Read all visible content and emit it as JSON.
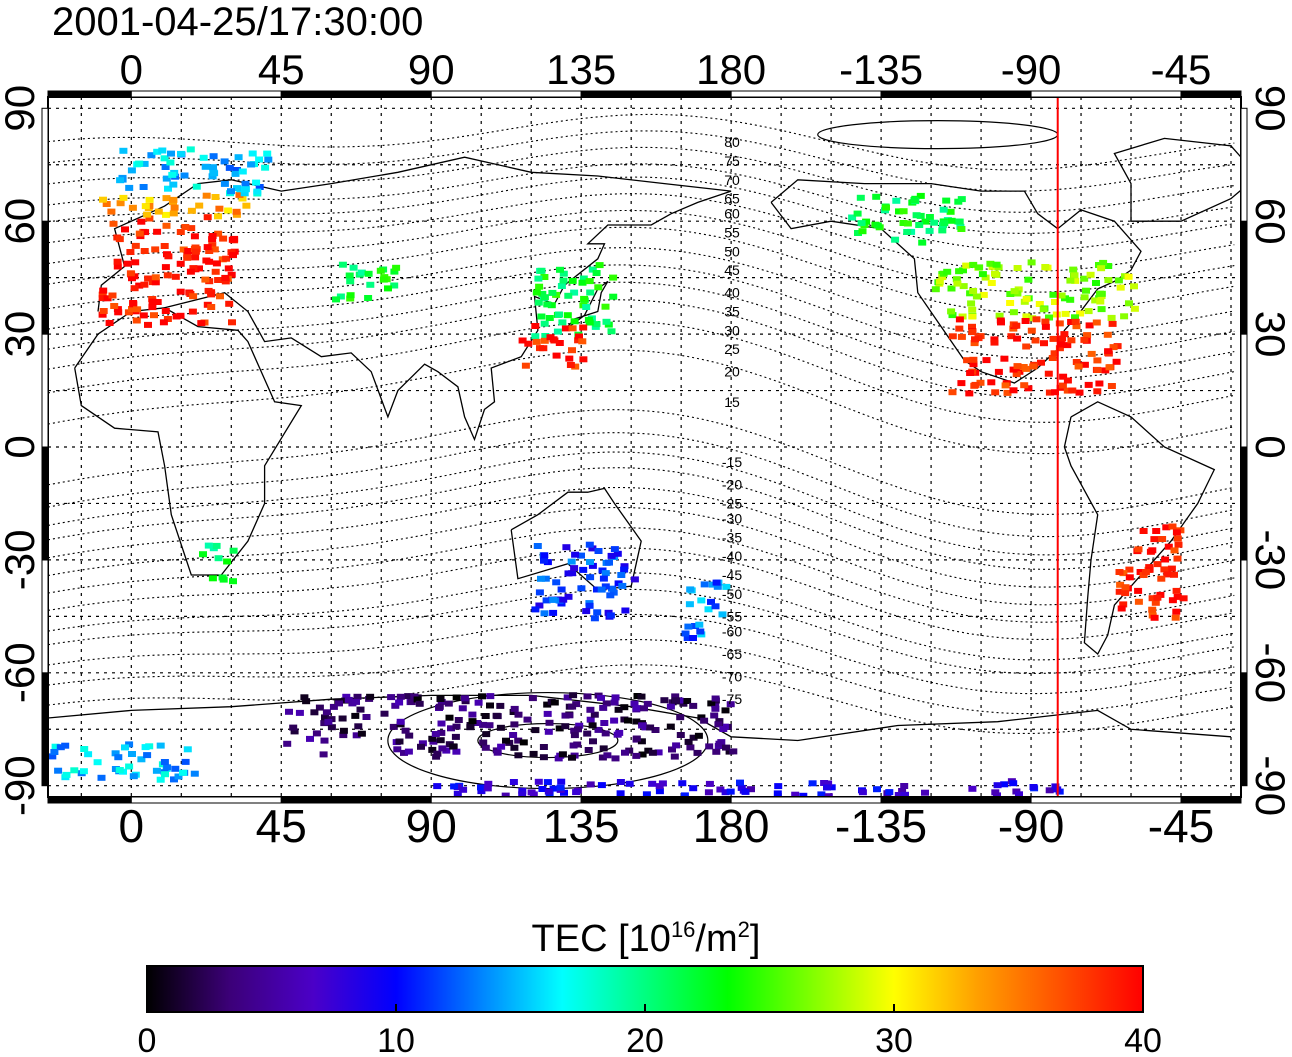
{
  "title": "2001-04-25/17:30:00",
  "map": {
    "lon_ticks": [
      "0",
      "45",
      "90",
      "135",
      "180",
      "-135",
      "-90",
      "-45"
    ],
    "lon_tick_values": [
      0,
      45,
      90,
      135,
      180,
      225,
      270,
      315
    ],
    "lat_ticks": [
      "90",
      "60",
      "30",
      "0",
      "-30",
      "-60",
      "-90"
    ],
    "lat_tick_values": [
      90,
      60,
      30,
      0,
      -30,
      -60,
      -90
    ],
    "lon_range": [
      -25,
      333
    ],
    "lat_range": [
      -93,
      93
    ],
    "marker_longitude": -82,
    "marker_color": "#ff0000",
    "dip_labels": [
      "80",
      "75",
      "70",
      "65",
      "60",
      "55",
      "50",
      "45",
      "40",
      "35",
      "30",
      "25",
      "20",
      "15",
      "-15",
      "-20",
      "-25",
      "-30",
      "-35",
      "-40",
      "-45",
      "-50",
      "-55",
      "-60",
      "-65",
      "-70",
      "-75"
    ],
    "dip_label_lats": [
      81,
      76,
      71,
      66,
      62,
      57,
      52,
      47,
      41,
      36,
      31,
      26,
      20,
      12,
      -4,
      -10,
      -15,
      -19,
      -24,
      -29,
      -34,
      -39,
      -45,
      -49,
      -55,
      -61,
      -67
    ]
  },
  "colorbar": {
    "label_main": "TEC  [10",
    "label_exp1": "16",
    "label_mid": "/m",
    "label_exp2": "2",
    "label_end": "]",
    "ticks": [
      "0",
      "10",
      "20",
      "30",
      "40"
    ],
    "range": [
      0,
      40
    ],
    "stops": [
      "#000000",
      "#3c0078",
      "#4b00c8",
      "#0000ff",
      "#0080ff",
      "#00ffff",
      "#00ff80",
      "#00ff00",
      "#80ff00",
      "#ffff00",
      "#ffa000",
      "#ff5000",
      "#ff0000"
    ]
  },
  "chart_data": {
    "type": "heatmap",
    "title": "2001-04-25/17:30:00",
    "colorbar_label": "TEC [10^16/m^2]",
    "regions": [
      {
        "lon": [
          -10,
          30
        ],
        "lat": [
          33,
          62
        ],
        "tec": 39
      },
      {
        "lon": [
          -10,
          35
        ],
        "lat": [
          62,
          68
        ],
        "tec": 33
      },
      {
        "lon": [
          -5,
          40
        ],
        "lat": [
          68,
          80
        ],
        "tec": 15
      },
      {
        "lon": [
          60,
          80
        ],
        "lat": [
          40,
          50
        ],
        "tec": 22
      },
      {
        "lon": [
          120,
          145
        ],
        "lat": [
          30,
          50
        ],
        "tec": 22
      },
      {
        "lon": [
          115,
          135
        ],
        "lat": [
          22,
          33
        ],
        "tec": 39
      },
      {
        "lon": [
          215,
          250
        ],
        "lat": [
          55,
          68
        ],
        "tec": 22
      },
      {
        "lon": [
          240,
          300
        ],
        "lat": [
          35,
          50
        ],
        "tec": 27
      },
      {
        "lon": [
          245,
          295
        ],
        "lat": [
          15,
          35
        ],
        "tec": 39
      },
      {
        "lon": [
          295,
          315
        ],
        "lat": [
          -45,
          -20
        ],
        "tec": 39
      },
      {
        "lon": [
          120,
          150
        ],
        "lat": [
          -45,
          -25
        ],
        "tec": 11
      },
      {
        "lon": [
          165,
          178
        ],
        "lat": [
          -50,
          -35
        ],
        "tec": 13
      },
      {
        "lon": [
          20,
          30
        ],
        "lat": [
          -35,
          -25
        ],
        "tec": 21
      },
      {
        "lon": [
          45,
          180
        ],
        "lat": [
          -82,
          -65
        ],
        "tec": 3
      },
      {
        "lon": [
          -25,
          18
        ],
        "lat": [
          -88,
          -78
        ],
        "tec": 15
      },
      {
        "lon": [
          90,
          285
        ],
        "lat": [
          -92,
          -88
        ],
        "tec": 8
      }
    ]
  }
}
